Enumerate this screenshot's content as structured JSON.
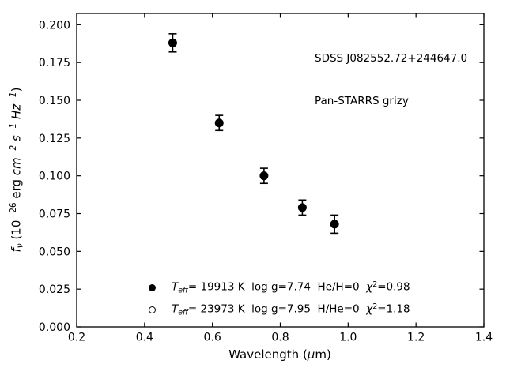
{
  "chart_data": {
    "type": "scatter",
    "title": "",
    "annotation": {
      "line1": "SDSS J082552.72+244647.0",
      "line2": "Pan-STARRS grizy"
    },
    "xlabel_segments": [
      {
        "text": "Wavelength (",
        "style": "normal"
      },
      {
        "text": "μ",
        "style": "italic"
      },
      {
        "text": "m)",
        "style": "normal"
      }
    ],
    "ylabel_segments": [
      {
        "text": "f",
        "style": "italic"
      },
      {
        "text": "ν",
        "style": "subitalic"
      },
      {
        "text": " (10",
        "style": "normal"
      },
      {
        "text": "−26",
        "style": "sup"
      },
      {
        "text": " erg ",
        "style": "normal"
      },
      {
        "text": "cm",
        "style": "italic"
      },
      {
        "text": "−2",
        "style": "supitalic"
      },
      {
        "text": " s",
        "style": "italic"
      },
      {
        "text": "−1",
        "style": "supitalic"
      },
      {
        "text": " Hz",
        "style": "italic"
      },
      {
        "text": "−1",
        "style": "supitalic"
      },
      {
        "text": ")",
        "style": "normal"
      }
    ],
    "xlim": [
      0.2,
      1.4
    ],
    "ylim": [
      0.0,
      0.2075
    ],
    "x_ticks": [
      0.2,
      0.4,
      0.6,
      0.8,
      1.0,
      1.2,
      1.4
    ],
    "x_tick_labels": [
      "0.2",
      "0.4",
      "0.6",
      "0.8",
      "1.0",
      "1.2",
      "1.4"
    ],
    "y_ticks": [
      0.0,
      0.025,
      0.05,
      0.075,
      0.1,
      0.125,
      0.15,
      0.175,
      0.2
    ],
    "y_tick_labels": [
      "0.000",
      "0.025",
      "0.050",
      "0.075",
      "0.100",
      "0.125",
      "0.150",
      "0.175",
      "0.200"
    ],
    "grid": false,
    "tick_direction": "in",
    "legend_position": "lower center inside",
    "series": [
      {
        "marker": "filled-circle",
        "x": [
          0.483,
          0.62,
          0.752,
          0.865,
          0.96
        ],
        "y": [
          0.188,
          0.135,
          0.1,
          0.079,
          0.068
        ],
        "yerr": [
          0.006,
          0.005,
          0.005,
          0.005,
          0.006
        ]
      }
    ],
    "legend": {
      "entries": [
        {
          "marker": "filled-circle",
          "segments": [
            {
              "text": "T",
              "style": "italic"
            },
            {
              "text": "eff",
              "style": "subitalic"
            },
            {
              "text": "= 19913 K  log g=7.74  He/H=0  ",
              "style": "normal"
            },
            {
              "text": "χ",
              "style": "italic"
            },
            {
              "text": "2",
              "style": "sup"
            },
            {
              "text": "=0.98",
              "style": "normal"
            }
          ]
        },
        {
          "marker": "open-circle",
          "segments": [
            {
              "text": "T",
              "style": "italic"
            },
            {
              "text": "eff",
              "style": "subitalic"
            },
            {
              "text": "= 23973 K  log g=7.95  H/He=0  ",
              "style": "normal"
            },
            {
              "text": "χ",
              "style": "italic"
            },
            {
              "text": "2",
              "style": "sup"
            },
            {
              "text": "=1.18",
              "style": "normal"
            }
          ]
        }
      ]
    },
    "colors": {
      "foreground": "#000000",
      "background": "#ffffff"
    }
  }
}
